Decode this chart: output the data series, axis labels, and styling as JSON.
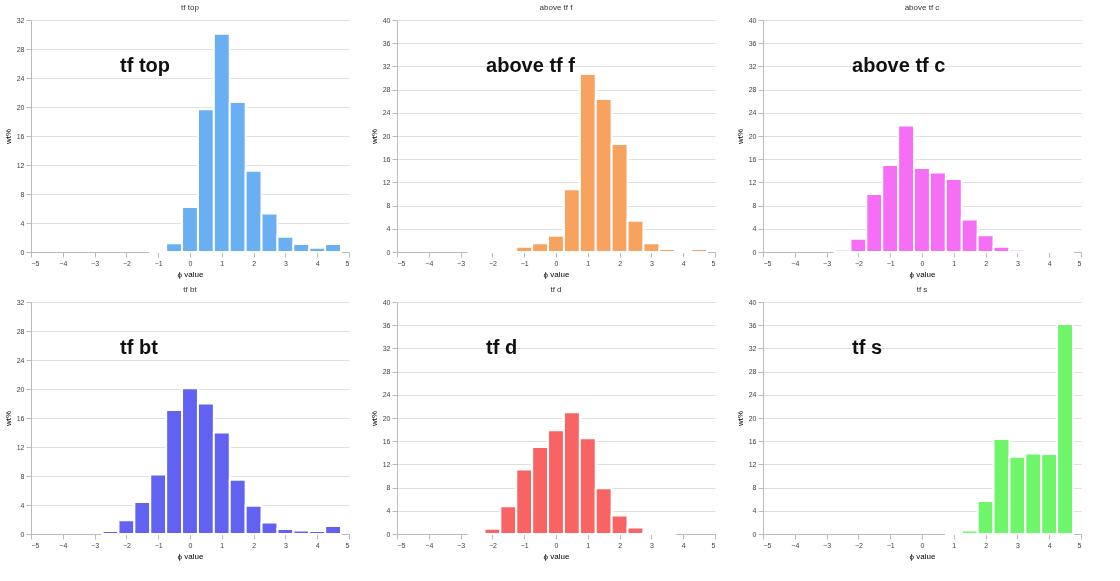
{
  "chart_data": [
    {
      "type": "histogram",
      "title": "tf top",
      "xlabel": "ϕ value",
      "ylabel": "wt%",
      "annotations": [
        "tf top"
      ],
      "bins": [
        -4.75,
        -4.25,
        -3.75,
        -3.25,
        -2.75,
        -2.25,
        -1.75,
        -1.25,
        -0.75,
        -0.25,
        0.25,
        0.75,
        1.25,
        1.75,
        2.25,
        2.75,
        3.25,
        3.75,
        4.25,
        4.75
      ],
      "values": [
        0,
        0,
        0,
        0,
        0,
        0,
        0,
        0.2,
        1.2,
        6.2,
        19.7,
        30.1,
        20.7,
        11.2,
        5.3,
        2.1,
        1.1,
        0.6,
        1.1
      ],
      "color": "#6aaff2",
      "xlim": [
        -5,
        5
      ],
      "xticks": [
        -5,
        -4,
        -3,
        -2,
        -1,
        0,
        1,
        2,
        3,
        4,
        5
      ],
      "ylim": [
        0,
        32
      ],
      "yticks": [
        0,
        4,
        8,
        12,
        16,
        20,
        24,
        28,
        32
      ],
      "grid": "y"
    },
    {
      "type": "histogram",
      "title": "above tf f",
      "xlabel": "ϕ value",
      "ylabel": "wt%",
      "annotations": [
        "above tf f"
      ],
      "bins": [
        -4.75,
        -4.25,
        -3.75,
        -3.25,
        -2.75,
        -2.25,
        -1.75,
        -1.25,
        -0.75,
        -0.25,
        0.25,
        0.75,
        1.25,
        1.75,
        2.25,
        2.75,
        3.25,
        3.75,
        4.25,
        4.75
      ],
      "values": [
        0,
        0,
        0,
        0,
        0.1,
        0.1,
        0.3,
        0.9,
        1.5,
        2.8,
        10.8,
        30.7,
        26.4,
        18.6,
        5.4,
        1.5,
        0.5,
        0.3,
        0.5
      ],
      "color": "#f8a25f",
      "xlim": [
        -5,
        5
      ],
      "xticks": [
        -5,
        -4,
        -3,
        -2,
        -1,
        0,
        1,
        2,
        3,
        4,
        5
      ],
      "ylim": [
        0,
        40
      ],
      "yticks": [
        0,
        4,
        8,
        12,
        16,
        20,
        24,
        28,
        32,
        36,
        40
      ],
      "grid": "y"
    },
    {
      "type": "histogram",
      "title": "above tf c",
      "xlabel": "ϕ value",
      "ylabel": "wt%",
      "annotations": [
        "above tf c"
      ],
      "bins": [
        -4.75,
        -4.25,
        -3.75,
        -3.25,
        -2.75,
        -2.25,
        -1.75,
        -1.25,
        -0.75,
        -0.25,
        0.25,
        0.75,
        1.25,
        1.75,
        2.25,
        2.75,
        3.25,
        3.75,
        4.25,
        4.75
      ],
      "values": [
        0,
        0,
        0,
        0,
        0.4,
        2.3,
        10,
        15,
        21.8,
        14.5,
        13.7,
        12.6,
        5.6,
        2.9,
        0.9,
        0.4,
        0.2,
        0.2,
        0.2
      ],
      "color": "#f56ef5",
      "xlim": [
        -5,
        5
      ],
      "xticks": [
        -5,
        -4,
        -3,
        -2,
        -1,
        0,
        1,
        2,
        3,
        4,
        5
      ],
      "ylim": [
        0,
        40
      ],
      "yticks": [
        0,
        4,
        8,
        12,
        16,
        20,
        24,
        28,
        32,
        36,
        40
      ],
      "grid": "y"
    },
    {
      "type": "histogram",
      "title": "tf bt",
      "xlabel": "ϕ value",
      "ylabel": "wt%",
      "annotations": [
        "tf bt"
      ],
      "bins": [
        -4.75,
        -4.25,
        -3.75,
        -3.25,
        -2.75,
        -2.25,
        -1.75,
        -1.25,
        -0.75,
        -0.25,
        0.25,
        0.75,
        1.25,
        1.75,
        2.25,
        2.75,
        3.25,
        3.75,
        4.25,
        4.75
      ],
      "values": [
        0,
        0,
        0,
        0,
        0.4,
        1.9,
        4.4,
        8.2,
        17.1,
        20.1,
        18,
        14,
        7.5,
        3.9,
        1.6,
        0.7,
        0.5,
        0.4,
        1.1
      ],
      "color": "#6262f2",
      "xlim": [
        -5,
        5
      ],
      "xticks": [
        -5,
        -4,
        -3,
        -2,
        -1,
        0,
        1,
        2,
        3,
        4,
        5
      ],
      "ylim": [
        0,
        32
      ],
      "yticks": [
        0,
        4,
        8,
        12,
        16,
        20,
        24,
        28,
        32
      ],
      "grid": "y"
    },
    {
      "type": "histogram",
      "title": "tf d",
      "xlabel": "ϕ value",
      "ylabel": "wt%",
      "annotations": [
        "tf d"
      ],
      "bins": [
        -4.75,
        -4.25,
        -3.75,
        -3.25,
        -2.75,
        -2.25,
        -1.75,
        -1.25,
        -0.75,
        -0.25,
        0.25,
        0.75,
        1.25,
        1.75,
        2.25,
        2.75,
        3.25,
        3.75,
        4.25,
        4.75
      ],
      "values": [
        0,
        0,
        0,
        0,
        0.1,
        0.9,
        4.8,
        11.1,
        15,
        17.9,
        21,
        16.5,
        7.9,
        3.2,
        1.1,
        0.3,
        0.1,
        0,
        0
      ],
      "color": "#f86464",
      "xlim": [
        -5,
        5
      ],
      "xticks": [
        -5,
        -4,
        -3,
        -2,
        -1,
        0,
        1,
        2,
        3,
        4,
        5
      ],
      "ylim": [
        0,
        40
      ],
      "yticks": [
        0,
        4,
        8,
        12,
        16,
        20,
        24,
        28,
        32,
        36,
        40
      ],
      "grid": "y"
    },
    {
      "type": "histogram",
      "title": "tf s",
      "xlabel": "ϕ value",
      "ylabel": "wt%",
      "annotations": [
        "tf s"
      ],
      "bins": [
        -4.75,
        -4.25,
        -3.75,
        -3.25,
        -2.75,
        -2.25,
        -1.75,
        -1.25,
        -0.75,
        -0.25,
        0.25,
        0.75,
        1.25,
        1.75,
        2.25,
        2.75,
        3.25,
        3.75,
        4.25,
        4.75
      ],
      "values": [
        0,
        0,
        0,
        0,
        0,
        0,
        0,
        0,
        0,
        0,
        0,
        0.1,
        0.6,
        5.7,
        16.4,
        13.3,
        13.9,
        13.8,
        36.2
      ],
      "color": "#6ef56a",
      "xlim": [
        -5,
        5
      ],
      "xticks": [
        -5,
        -4,
        -3,
        -2,
        -1,
        0,
        1,
        2,
        3,
        4,
        5
      ],
      "ylim": [
        0,
        40
      ],
      "yticks": [
        0,
        4,
        8,
        12,
        16,
        20,
        24,
        28,
        32,
        36,
        40
      ],
      "grid": "y"
    }
  ]
}
